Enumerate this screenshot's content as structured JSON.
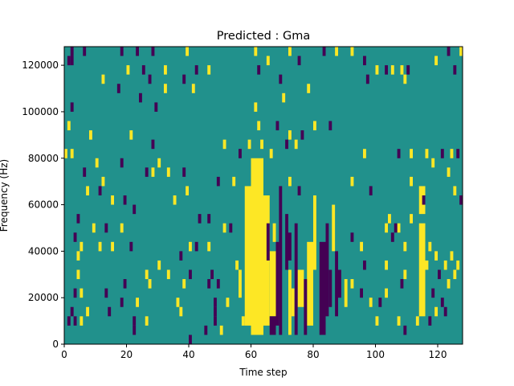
{
  "chart_data": {
    "type": "heatmap",
    "title": "Predicted : Gma",
    "xlabel": "Time step",
    "ylabel": "Frequency (Hz)",
    "xlim": [
      0,
      128
    ],
    "ylim": [
      0,
      128000
    ],
    "x_ticks": [
      0,
      20,
      40,
      60,
      80,
      100,
      120
    ],
    "x_tick_labels": [
      "0",
      "20",
      "40",
      "60",
      "80",
      "100",
      "120"
    ],
    "y_ticks": [
      0,
      20000,
      40000,
      60000,
      80000,
      100000,
      120000
    ],
    "y_tick_labels": [
      "0",
      "20000",
      "40000",
      "60000",
      "80000",
      "100000",
      "120000"
    ],
    "grid": false,
    "legend": "none",
    "colormap": "viridis",
    "value_levels": [
      -1,
      0,
      1
    ],
    "colors": {
      "low": "#440154",
      "mid": "#21918c",
      "high": "#fde725"
    },
    "background_value": 0,
    "time_bins": 128,
    "frequency_bin_hz": 4000,
    "band_cells": [
      {
        "t": [
          60,
          64
        ],
        "f": [
          4000,
          76000
        ],
        "value": 1
      },
      {
        "t": [
          58,
          60
        ],
        "f": [
          8000,
          64000
        ],
        "value": 1
      },
      {
        "t": [
          64,
          66
        ],
        "f": [
          8000,
          60000
        ],
        "value": 1
      },
      {
        "t": [
          66,
          68
        ],
        "f": [
          12000,
          36000
        ],
        "value": 1
      },
      {
        "t": [
          56,
          57
        ],
        "f": [
          20000,
          28000
        ],
        "value": 1
      },
      {
        "t": [
          72,
          73
        ],
        "f": [
          4000,
          28000
        ],
        "value": 1
      },
      {
        "t": [
          73,
          74
        ],
        "f": [
          12000,
          20000
        ],
        "value": 1
      },
      {
        "t": [
          78,
          80
        ],
        "f": [
          8000,
          40000
        ],
        "value": 1
      },
      {
        "t": [
          75,
          77
        ],
        "f": [
          16000,
          28000
        ],
        "value": 1
      },
      {
        "t": [
          80,
          81
        ],
        "f": [
          32000,
          60000
        ],
        "value": 1
      },
      {
        "t": [
          86,
          87
        ],
        "f": [
          40000,
          56000
        ],
        "value": 1
      },
      {
        "t": [
          114,
          116
        ],
        "f": [
          12000,
          48000
        ],
        "value": 1
      },
      {
        "t": [
          114,
          116
        ],
        "f": [
          56000,
          64000
        ],
        "value": 1
      },
      {
        "t": [
          67,
          68
        ],
        "f": [
          44000,
          48000
        ],
        "value": 1
      },
      {
        "t": [
          90,
          91
        ],
        "f": [
          16000,
          24000
        ],
        "value": 1
      },
      {
        "t": [
          66,
          68
        ],
        "f": [
          4000,
          8000
        ],
        "value": -1
      },
      {
        "t": [
          68,
          69
        ],
        "f": [
          8000,
          40000
        ],
        "value": -1
      },
      {
        "t": [
          69,
          70
        ],
        "f": [
          4000,
          64000
        ],
        "value": -1
      },
      {
        "t": [
          74,
          75
        ],
        "f": [
          4000,
          48000
        ],
        "value": -1
      },
      {
        "t": [
          77,
          78
        ],
        "f": [
          4000,
          24000
        ],
        "value": -1
      },
      {
        "t": [
          82,
          84
        ],
        "f": [
          4000,
          40000
        ],
        "value": -1
      },
      {
        "t": [
          84,
          85
        ],
        "f": [
          12000,
          48000
        ],
        "value": -1
      },
      {
        "t": [
          85,
          86
        ],
        "f": [
          16000,
          28000
        ],
        "value": -1
      },
      {
        "t": [
          87,
          88
        ],
        "f": [
          12000,
          36000
        ],
        "value": -1
      },
      {
        "t": [
          71,
          72
        ],
        "f": [
          32000,
          52000
        ],
        "value": -1
      },
      {
        "t": [
          72,
          73
        ],
        "f": [
          36000,
          44000
        ],
        "value": -1
      },
      {
        "t": [
          65,
          66
        ],
        "f": [
          36000,
          48000
        ],
        "value": -1
      },
      {
        "t": [
          88,
          89
        ],
        "f": [
          20000,
          28000
        ],
        "value": -1
      }
    ],
    "point_cells": [
      {
        "t": 3,
        "f": 120000,
        "v": -1
      },
      {
        "t": 2,
        "f": 120000,
        "v": -1
      },
      {
        "t": 3,
        "f": 124000,
        "v": -1
      },
      {
        "t": 5,
        "f": 128000,
        "v": -1
      },
      {
        "t": 7,
        "f": 124000,
        "v": -1
      },
      {
        "t": 12,
        "f": 128000,
        "v": 1
      },
      {
        "t": 19,
        "f": 124000,
        "v": -1
      },
      {
        "t": 24,
        "f": 124000,
        "v": -1
      },
      {
        "t": 29,
        "f": 124000,
        "v": -1
      },
      {
        "t": 32,
        "f": 128000,
        "v": -1
      },
      {
        "t": 40,
        "f": 124000,
        "v": 1
      },
      {
        "t": 43,
        "f": 116000,
        "v": -1
      },
      {
        "t": 21,
        "f": 116000,
        "v": 1
      },
      {
        "t": 26,
        "f": 116000,
        "v": -1
      },
      {
        "t": 33,
        "f": 116000,
        "v": 1
      },
      {
        "t": 39,
        "f": 112000,
        "v": -1
      },
      {
        "t": 13,
        "f": 112000,
        "v": 1
      },
      {
        "t": 28,
        "f": 112000,
        "v": -1
      },
      {
        "t": 42,
        "f": 108000,
        "v": 1
      },
      {
        "t": 18,
        "f": 108000,
        "v": -1
      },
      {
        "t": 25,
        "f": 104000,
        "v": -1
      },
      {
        "t": 30,
        "f": 100000,
        "v": -1
      },
      {
        "t": 3,
        "f": 100000,
        "v": -1
      },
      {
        "t": 33,
        "f": 108000,
        "v": 1
      },
      {
        "t": 47,
        "f": 116000,
        "v": 1
      },
      {
        "t": 62,
        "f": 124000,
        "v": 1
      },
      {
        "t": 63,
        "f": 116000,
        "v": -1
      },
      {
        "t": 66,
        "f": 120000,
        "v": 1
      },
      {
        "t": 70,
        "f": 112000,
        "v": -1
      },
      {
        "t": 73,
        "f": 124000,
        "v": 1
      },
      {
        "t": 76,
        "f": 120000,
        "v": -1
      },
      {
        "t": 81,
        "f": 128000,
        "v": -1
      },
      {
        "t": 84,
        "f": 124000,
        "v": -1
      },
      {
        "t": 88,
        "f": 124000,
        "v": 1
      },
      {
        "t": 91,
        "f": 128000,
        "v": -1
      },
      {
        "t": 93,
        "f": 124000,
        "v": 1
      },
      {
        "t": 95,
        "f": 128000,
        "v": 1
      },
      {
        "t": 98,
        "f": 128000,
        "v": 1
      },
      {
        "t": 105,
        "f": 128000,
        "v": 1
      },
      {
        "t": 97,
        "f": 120000,
        "v": -1
      },
      {
        "t": 101,
        "f": 116000,
        "v": 1
      },
      {
        "t": 104,
        "f": 116000,
        "v": -1
      },
      {
        "t": 106,
        "f": 116000,
        "v": 1
      },
      {
        "t": 109,
        "f": 116000,
        "v": 1
      },
      {
        "t": 111,
        "f": 116000,
        "v": -1
      },
      {
        "t": 110,
        "f": 112000,
        "v": 1
      },
      {
        "t": 98,
        "f": 112000,
        "v": -1
      },
      {
        "t": 120,
        "f": 120000,
        "v": 1
      },
      {
        "t": 124,
        "f": 124000,
        "v": -1
      },
      {
        "t": 128,
        "f": 124000,
        "v": 1
      },
      {
        "t": 126,
        "f": 116000,
        "v": -1
      },
      {
        "t": 79,
        "f": 108000,
        "v": 1
      },
      {
        "t": 71,
        "f": 104000,
        "v": 1
      },
      {
        "t": 62,
        "f": 100000,
        "v": 1
      },
      {
        "t": 63,
        "f": 92000,
        "v": 1
      },
      {
        "t": 69,
        "f": 92000,
        "v": -1
      },
      {
        "t": 73,
        "f": 88000,
        "v": 1
      },
      {
        "t": 77,
        "f": 88000,
        "v": -1
      },
      {
        "t": 81,
        "f": 92000,
        "v": 1
      },
      {
        "t": 86,
        "f": 92000,
        "v": -1
      },
      {
        "t": 2,
        "f": 92000,
        "v": 1
      },
      {
        "t": 9,
        "f": 88000,
        "v": 1
      },
      {
        "t": 22,
        "f": 88000,
        "v": 1
      },
      {
        "t": 29,
        "f": 84000,
        "v": -1
      },
      {
        "t": 52,
        "f": 84000,
        "v": 1
      },
      {
        "t": 57,
        "f": 80000,
        "v": -1
      },
      {
        "t": 60,
        "f": 84000,
        "v": 1
      },
      {
        "t": 64,
        "f": 84000,
        "v": 1
      },
      {
        "t": 67,
        "f": 80000,
        "v": 1
      },
      {
        "t": 72,
        "f": 84000,
        "v": -1
      },
      {
        "t": 75,
        "f": 84000,
        "v": 1
      },
      {
        "t": 97,
        "f": 80000,
        "v": 1
      },
      {
        "t": 1,
        "f": 80000,
        "v": 1
      },
      {
        "t": 3,
        "f": 80000,
        "v": 1
      },
      {
        "t": 11,
        "f": 76000,
        "v": 1
      },
      {
        "t": 19,
        "f": 76000,
        "v": -1
      },
      {
        "t": 31,
        "f": 76000,
        "v": 1
      },
      {
        "t": 34,
        "f": 72000,
        "v": 1
      },
      {
        "t": 29,
        "f": 72000,
        "v": 1
      },
      {
        "t": 39,
        "f": 72000,
        "v": -1
      },
      {
        "t": 27,
        "f": 72000,
        "v": -1
      },
      {
        "t": 7,
        "f": 72000,
        "v": -1
      },
      {
        "t": 13,
        "f": 68000,
        "v": 1
      },
      {
        "t": 8,
        "f": 64000,
        "v": 1
      },
      {
        "t": 12,
        "f": 64000,
        "v": -1
      },
      {
        "t": 40,
        "f": 64000,
        "v": 1
      },
      {
        "t": 50,
        "f": 68000,
        "v": -1
      },
      {
        "t": 55,
        "f": 68000,
        "v": 1
      },
      {
        "t": 73,
        "f": 68000,
        "v": 1
      },
      {
        "t": 76,
        "f": 64000,
        "v": -1
      },
      {
        "t": 93,
        "f": 68000,
        "v": 1
      },
      {
        "t": 99,
        "f": 64000,
        "v": -1
      },
      {
        "t": 108,
        "f": 80000,
        "v": -1
      },
      {
        "t": 112,
        "f": 80000,
        "v": 1
      },
      {
        "t": 117,
        "f": 80000,
        "v": 1
      },
      {
        "t": 119,
        "f": 76000,
        "v": 1
      },
      {
        "t": 122,
        "f": 80000,
        "v": -1
      },
      {
        "t": 125,
        "f": 80000,
        "v": 1
      },
      {
        "t": 127,
        "f": 80000,
        "v": -1
      },
      {
        "t": 124,
        "f": 72000,
        "v": 1
      },
      {
        "t": 126,
        "f": 64000,
        "v": 1
      },
      {
        "t": 128,
        "f": 60000,
        "v": -1
      },
      {
        "t": 16,
        "f": 60000,
        "v": 1
      },
      {
        "t": 20,
        "f": 60000,
        "v": -1
      },
      {
        "t": 23,
        "f": 56000,
        "v": -1
      },
      {
        "t": 36,
        "f": 60000,
        "v": 1
      },
      {
        "t": 44,
        "f": 52000,
        "v": -1
      },
      {
        "t": 47,
        "f": 52000,
        "v": -1
      },
      {
        "t": 52,
        "f": 48000,
        "v": 1
      },
      {
        "t": 54,
        "f": 48000,
        "v": -1
      },
      {
        "t": 5,
        "f": 52000,
        "v": -1
      },
      {
        "t": 10,
        "f": 48000,
        "v": 1
      },
      {
        "t": 14,
        "f": 48000,
        "v": -1
      },
      {
        "t": 19,
        "f": 48000,
        "v": 1
      },
      {
        "t": 4,
        "f": 44000,
        "v": -1
      },
      {
        "t": 6,
        "f": 40000,
        "v": 1
      },
      {
        "t": 12,
        "f": 40000,
        "v": 1
      },
      {
        "t": 16,
        "f": 40000,
        "v": 1
      },
      {
        "t": 22,
        "f": 40000,
        "v": -1
      },
      {
        "t": 41,
        "f": 40000,
        "v": 1
      },
      {
        "t": 43,
        "f": 40000,
        "v": -1
      },
      {
        "t": 47,
        "f": 40000,
        "v": 1
      },
      {
        "t": 5,
        "f": 36000,
        "v": 1
      },
      {
        "t": 31,
        "f": 32000,
        "v": 1
      },
      {
        "t": 38,
        "f": 36000,
        "v": -1
      },
      {
        "t": 48,
        "f": 28000,
        "v": -1
      },
      {
        "t": 56,
        "f": 32000,
        "v": 1
      },
      {
        "t": 5,
        "f": 28000,
        "v": 1
      },
      {
        "t": 27,
        "f": 28000,
        "v": 1
      },
      {
        "t": 34,
        "f": 28000,
        "v": 1
      },
      {
        "t": 41,
        "f": 28000,
        "v": -1
      },
      {
        "t": 20,
        "f": 24000,
        "v": -1
      },
      {
        "t": 28,
        "f": 24000,
        "v": 1
      },
      {
        "t": 39,
        "f": 24000,
        "v": 1
      },
      {
        "t": 47,
        "f": 24000,
        "v": -1
      },
      {
        "t": 50,
        "f": 24000,
        "v": -1
      },
      {
        "t": 4,
        "f": 20000,
        "v": -1
      },
      {
        "t": 6,
        "f": 20000,
        "v": 1
      },
      {
        "t": 14,
        "f": 20000,
        "v": -1
      },
      {
        "t": 19,
        "f": 16000,
        "v": -1
      },
      {
        "t": 24,
        "f": 16000,
        "v": 1
      },
      {
        "t": 37,
        "f": 16000,
        "v": 1
      },
      {
        "t": 49,
        "f": 16000,
        "v": -1
      },
      {
        "t": 53,
        "f": 16000,
        "v": 1
      },
      {
        "t": 3,
        "f": 12000,
        "v": -1
      },
      {
        "t": 8,
        "f": 12000,
        "v": 1
      },
      {
        "t": 15,
        "f": 12000,
        "v": -1
      },
      {
        "t": 38,
        "f": 12000,
        "v": 1
      },
      {
        "t": 49,
        "f": 12000,
        "v": -1
      },
      {
        "t": 2,
        "f": 8000,
        "v": -1
      },
      {
        "t": 4,
        "f": 8000,
        "v": -1
      },
      {
        "t": 6,
        "f": 8000,
        "v": 1
      },
      {
        "t": 23,
        "f": 8000,
        "v": -1
      },
      {
        "t": 27,
        "f": 8000,
        "v": 1
      },
      {
        "t": 49,
        "f": 8000,
        "v": -1
      },
      {
        "t": 58,
        "f": 8000,
        "v": 1
      },
      {
        "t": 23,
        "f": 4000,
        "v": -1
      },
      {
        "t": 46,
        "f": 4000,
        "v": -1
      },
      {
        "t": 51,
        "f": 4000,
        "v": 1
      },
      {
        "t": 41,
        "f": 0,
        "v": -1
      },
      {
        "t": 93,
        "f": 44000,
        "v": -1
      },
      {
        "t": 96,
        "f": 40000,
        "v": 1
      },
      {
        "t": 97,
        "f": 32000,
        "v": -1
      },
      {
        "t": 93,
        "f": 24000,
        "v": 1
      },
      {
        "t": 96,
        "f": 20000,
        "v": -1
      },
      {
        "t": 99,
        "f": 16000,
        "v": 1
      },
      {
        "t": 102,
        "f": 16000,
        "v": -1
      },
      {
        "t": 104,
        "f": 20000,
        "v": 1
      },
      {
        "t": 101,
        "f": 8000,
        "v": 1
      },
      {
        "t": 108,
        "f": 8000,
        "v": 1
      },
      {
        "t": 110,
        "f": 4000,
        "v": -1
      },
      {
        "t": 104,
        "f": 48000,
        "v": 1
      },
      {
        "t": 106,
        "f": 44000,
        "v": -1
      },
      {
        "t": 108,
        "f": 48000,
        "v": 1
      },
      {
        "t": 110,
        "f": 40000,
        "v": 1
      },
      {
        "t": 104,
        "f": 32000,
        "v": 1
      },
      {
        "t": 110,
        "f": 28000,
        "v": 1
      },
      {
        "t": 109,
        "f": 24000,
        "v": -1
      },
      {
        "t": 118,
        "f": 40000,
        "v": 1
      },
      {
        "t": 120,
        "f": 36000,
        "v": 1
      },
      {
        "t": 117,
        "f": 32000,
        "v": 1
      },
      {
        "t": 121,
        "f": 28000,
        "v": -1
      },
      {
        "t": 123,
        "f": 32000,
        "v": 1
      },
      {
        "t": 125,
        "f": 36000,
        "v": 1
      },
      {
        "t": 127,
        "f": 32000,
        "v": 1
      },
      {
        "t": 119,
        "f": 20000,
        "v": -1
      },
      {
        "t": 122,
        "f": 16000,
        "v": -1
      },
      {
        "t": 124,
        "f": 24000,
        "v": 1
      },
      {
        "t": 126,
        "f": 28000,
        "v": 1
      },
      {
        "t": 120,
        "f": 12000,
        "v": 1
      },
      {
        "t": 123,
        "f": 12000,
        "v": -1
      },
      {
        "t": 118,
        "f": 8000,
        "v": -1
      },
      {
        "t": 114,
        "f": 8000,
        "v": 1
      },
      {
        "t": 107,
        "f": 48000,
        "v": -1
      },
      {
        "t": 105,
        "f": 52000,
        "v": 1
      },
      {
        "t": 112,
        "f": 52000,
        "v": 1
      },
      {
        "t": 116,
        "f": 60000,
        "v": -1
      },
      {
        "t": 112,
        "f": 68000,
        "v": 1
      }
    ]
  }
}
